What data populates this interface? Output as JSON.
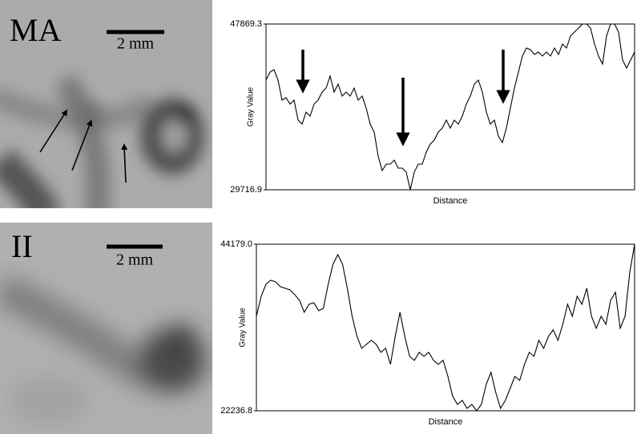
{
  "panels": [
    {
      "label": "MA",
      "scale_bar": "2 mm"
    },
    {
      "label": "II",
      "scale_bar": "2 mm"
    }
  ],
  "chart_data": [
    {
      "type": "line",
      "xlabel": "Distance",
      "ylabel": "Gray Value",
      "color": "#000000",
      "ylim": [
        29716.9,
        47869.3
      ],
      "yticks": [
        29716.9,
        47869.3
      ],
      "values": [
        41731,
        42608,
        42871,
        41731,
        39539,
        39802,
        39100,
        39539,
        37346,
        36908,
        38223,
        37785,
        39100,
        39539,
        40415,
        40854,
        42169,
        40415,
        41292,
        39977,
        40415,
        39977,
        40854,
        39539,
        39977,
        38662,
        36908,
        36031,
        33400,
        31822,
        32523,
        32523,
        32962,
        32085,
        32085,
        31647,
        29717,
        31647,
        32523,
        32523,
        33839,
        34716,
        35154,
        36031,
        36470,
        37346,
        36470,
        37346,
        36908,
        37785,
        39100,
        39977,
        41292,
        41731,
        40415,
        38223,
        36908,
        37346,
        35593,
        34891,
        36470,
        38662,
        40854,
        42608,
        44362,
        45239,
        45063,
        44537,
        44800,
        44362,
        44800,
        44362,
        45239,
        44537,
        45677,
        45239,
        46554,
        46992,
        47431,
        47869,
        47869,
        47431,
        45677,
        44362,
        43485,
        46554,
        47869,
        47869,
        46992,
        43923,
        43046,
        43923,
        44800
      ]
    },
    {
      "type": "line",
      "xlabel": "Distance",
      "ylabel": "Gray Value",
      "color": "#000000",
      "ylim": [
        22236.8,
        44179
      ],
      "yticks": [
        22236.8,
        {
          "value": 44179,
          "label": "44179.0"
        }
      ],
      "values": [
        34684,
        37322,
        38904,
        39432,
        39220,
        38587,
        38377,
        38166,
        37532,
        36794,
        35212,
        36266,
        36478,
        35422,
        35739,
        38904,
        41542,
        42808,
        41542,
        38377,
        34684,
        32047,
        30464,
        30992,
        31519,
        30992,
        29937,
        30464,
        28354,
        32047,
        35212,
        32047,
        29410,
        28882,
        29937,
        29410,
        29937,
        28882,
        28354,
        28882,
        26772,
        24135,
        23079,
        23607,
        22552,
        23079,
        22237,
        23079,
        25716,
        27299,
        24662,
        22552,
        23607,
        25190,
        26772,
        26244,
        28354,
        29937,
        29410,
        31519,
        30464,
        32047,
        32890,
        31519,
        33629,
        36266,
        34684,
        37322,
        36266,
        38377,
        34684,
        33101,
        34684,
        33629,
        36794,
        37849,
        33101,
        34684,
        40486,
        44179
      ]
    }
  ]
}
